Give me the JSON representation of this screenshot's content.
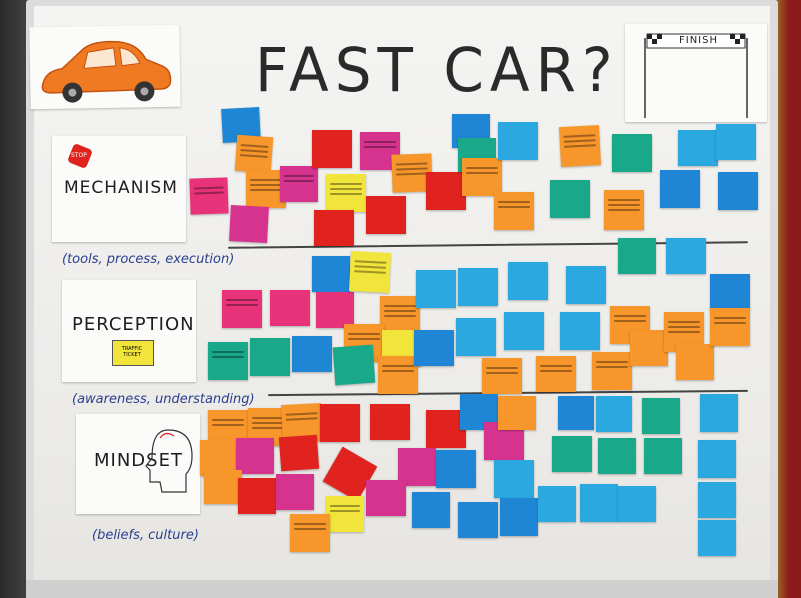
{
  "board": {
    "title": "FAST CAR?",
    "finish_banner": "FINISH",
    "sections": [
      {
        "key": "mechanism",
        "heading": "MECHANISM",
        "subtitle": "(tools, process, execution)",
        "sign": "STOP"
      },
      {
        "key": "perception",
        "heading": "PERCEPTION",
        "subtitle": "(awareness, understanding)",
        "sign": "TRAFFIC TICKET"
      },
      {
        "key": "mindset",
        "heading": "MINDSET",
        "subtitle": "(beliefs, culture)"
      }
    ]
  },
  "colors": {
    "pink": "#e8337a",
    "magenta": "#d6338f",
    "cyan": "#2ba8e0",
    "blue": "#1f86d6",
    "teal": "#1aa88a",
    "orange": "#f7962b",
    "yellow": "#f1e43a",
    "red": "#e0231f",
    "car": "#f07a22"
  },
  "notes_legend": "handwritten sticky notes on whiteboard"
}
